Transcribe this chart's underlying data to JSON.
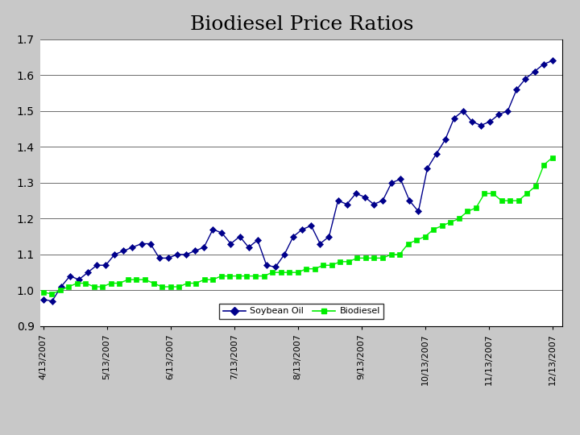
{
  "title": "Biodiesel Price Ratios",
  "title_fontsize": 18,
  "background_color": "#c8c8c8",
  "plot_bg_color": "#ffffff",
  "ylim": [
    0.9,
    1.7
  ],
  "yticks": [
    0.9,
    1.0,
    1.1,
    1.2,
    1.3,
    1.4,
    1.5,
    1.6,
    1.7
  ],
  "xtick_labels": [
    "4/13/2007",
    "5/13/2007",
    "6/13/2007",
    "7/13/2007",
    "8/13/2007",
    "9/13/2007",
    "10/13/2007",
    "11/13/2007",
    "12/13/2007"
  ],
  "soybean_color": "#00008B",
  "biodiesel_color": "#00EE00",
  "soybean_label": "Soybean Oil",
  "biodiesel_label": "Biodiesel",
  "soybean_values": [
    0.975,
    0.97,
    1.01,
    1.04,
    1.03,
    1.05,
    1.07,
    1.07,
    1.1,
    1.11,
    1.12,
    1.13,
    1.13,
    1.09,
    1.09,
    1.1,
    1.1,
    1.11,
    1.12,
    1.17,
    1.16,
    1.13,
    1.15,
    1.12,
    1.14,
    1.07,
    1.065,
    1.1,
    1.15,
    1.17,
    1.18,
    1.13,
    1.15,
    1.25,
    1.24,
    1.27,
    1.26,
    1.24,
    1.25,
    1.3,
    1.31,
    1.25,
    1.22,
    1.34,
    1.38,
    1.42,
    1.48,
    1.5,
    1.47,
    1.46,
    1.47,
    1.49,
    1.5,
    1.56,
    1.59,
    1.61,
    1.63,
    1.64
  ],
  "biodiesel_values": [
    0.995,
    0.99,
    1.0,
    1.01,
    1.02,
    1.02,
    1.01,
    1.01,
    1.02,
    1.02,
    1.03,
    1.03,
    1.03,
    1.02,
    1.01,
    1.01,
    1.01,
    1.02,
    1.02,
    1.03,
    1.03,
    1.04,
    1.04,
    1.04,
    1.04,
    1.04,
    1.04,
    1.05,
    1.05,
    1.05,
    1.05,
    1.06,
    1.06,
    1.07,
    1.07,
    1.08,
    1.08,
    1.09,
    1.09,
    1.09,
    1.09,
    1.1,
    1.1,
    1.13,
    1.14,
    1.15,
    1.17,
    1.18,
    1.19,
    1.2,
    1.22,
    1.23,
    1.27,
    1.27,
    1.25,
    1.25,
    1.25,
    1.27,
    1.29,
    1.35,
    1.37
  ]
}
